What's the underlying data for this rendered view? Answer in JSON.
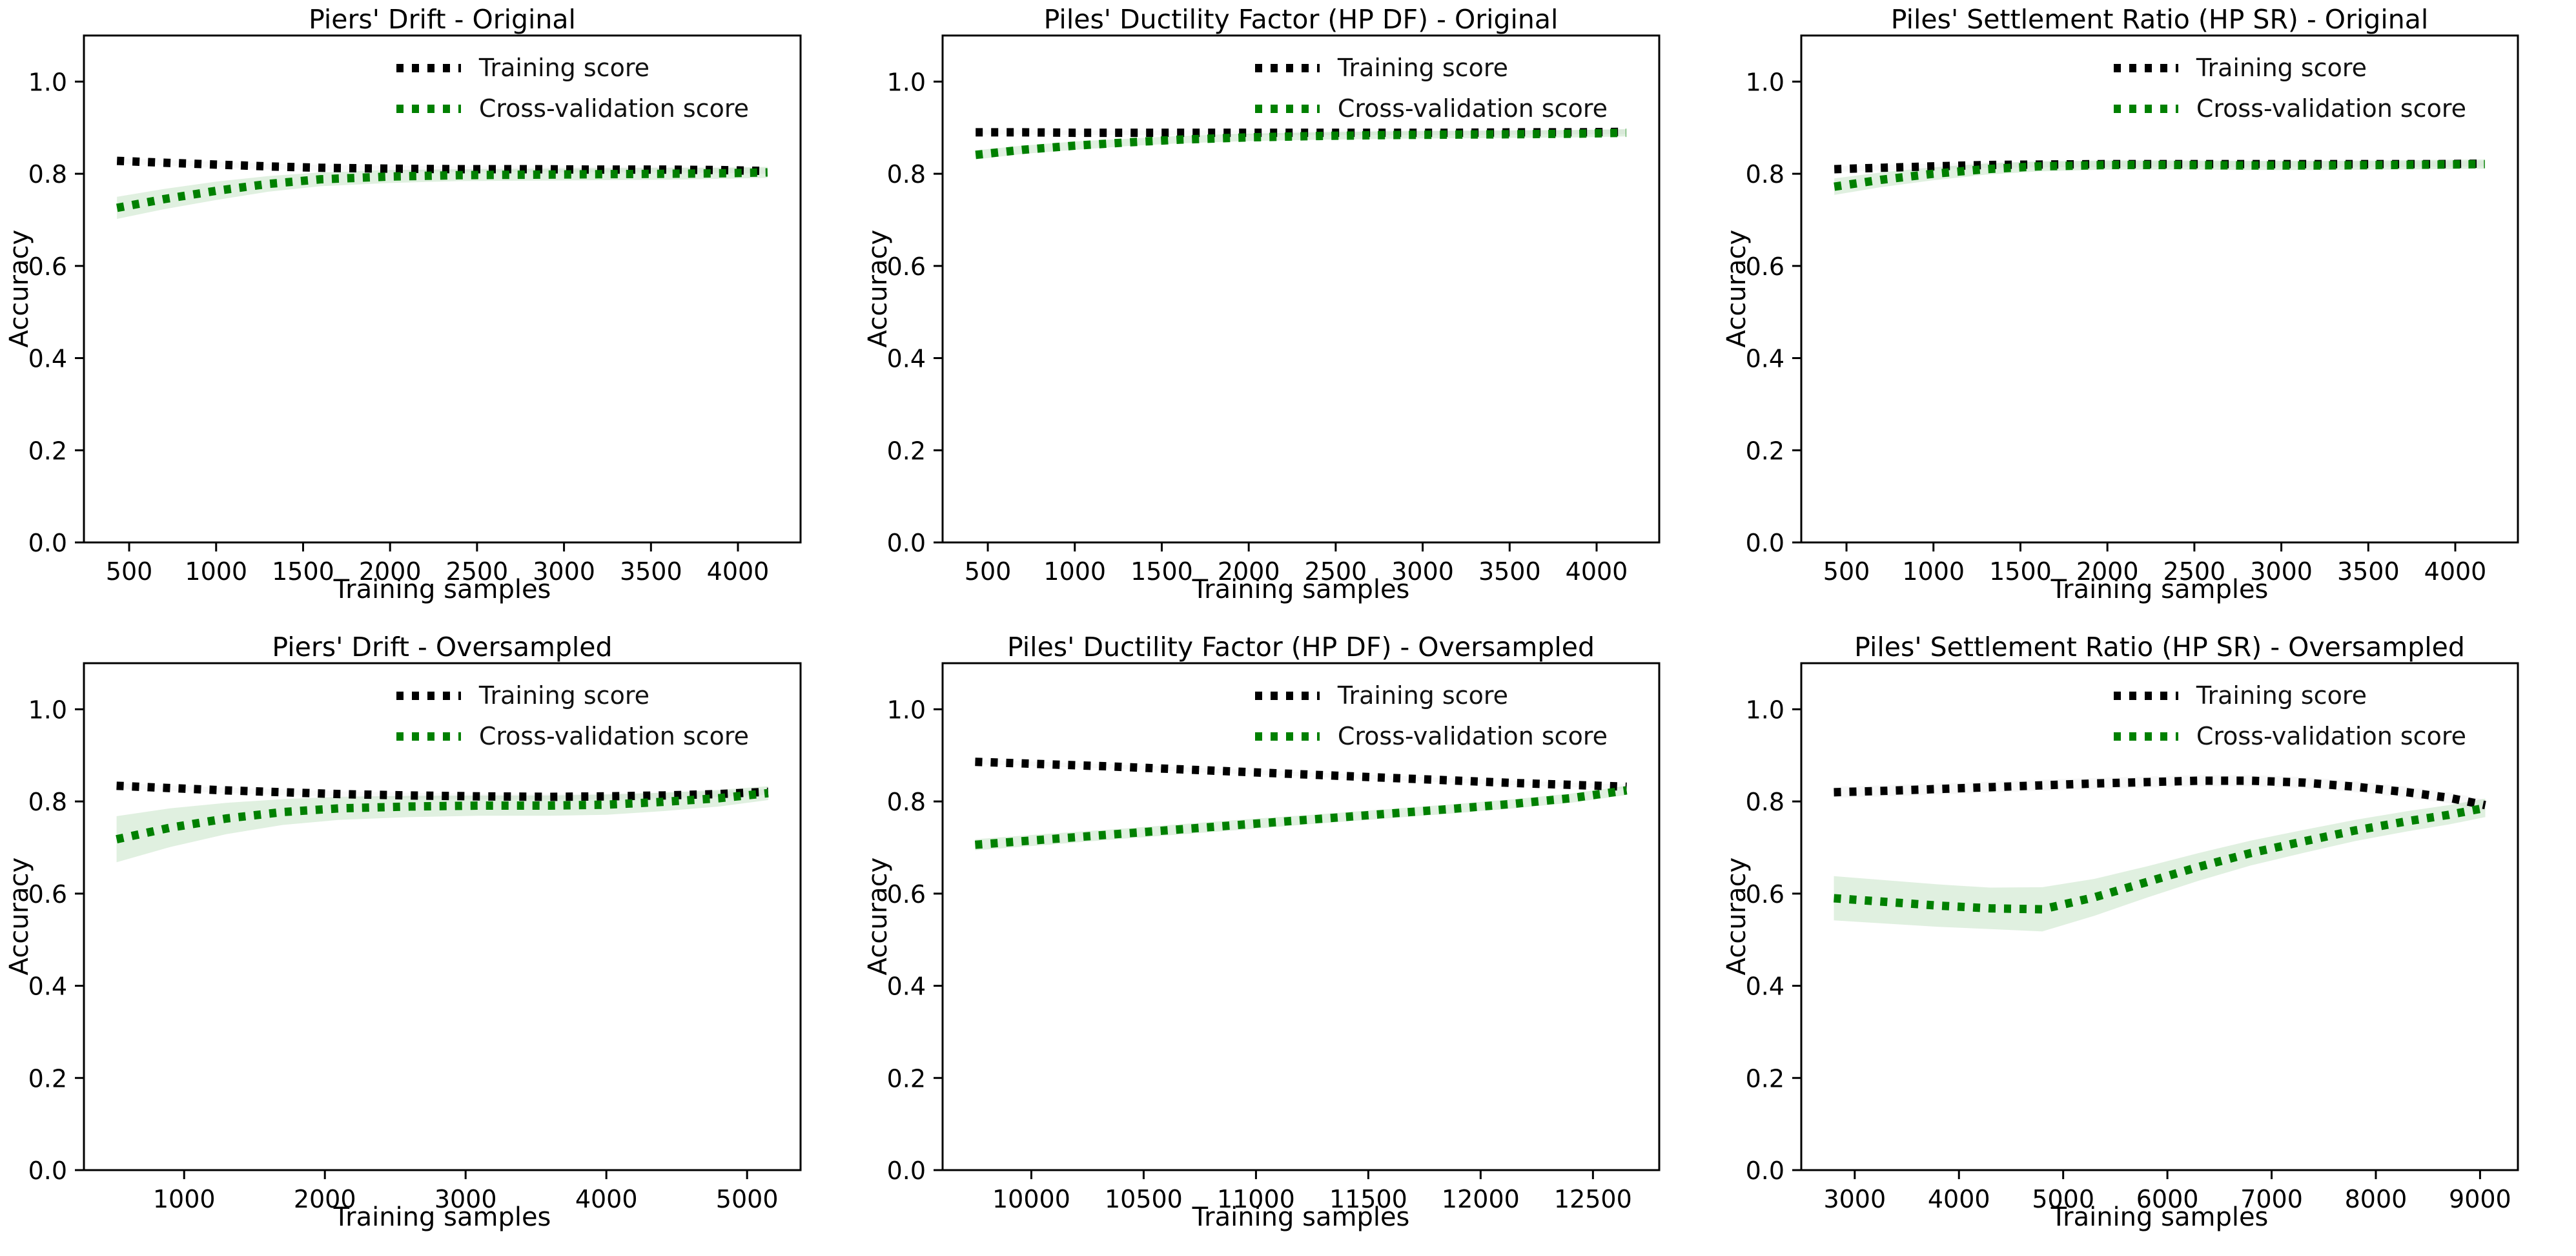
{
  "page": {
    "background": "#ffffff"
  },
  "colors": {
    "train": "#000000",
    "cv": "#008000",
    "cv_band": "#008000",
    "train_band": "#999999"
  },
  "chart_data": [
    {
      "type": "line",
      "title": "Piers' Drift - Original",
      "xlabel": "Training samples",
      "ylabel": "Accuracy",
      "legend": [
        "Training score",
        "Cross-validation score"
      ],
      "legend_position": "upper right",
      "grid": false,
      "xlim": [
        240,
        4360
      ],
      "ylim": [
        0,
        1.1
      ],
      "xticks": [
        500,
        1000,
        1500,
        2000,
        2500,
        3000,
        3500,
        4000
      ],
      "yticks": [
        0,
        0.2,
        0.4,
        0.6,
        0.8,
        1.0
      ],
      "ytick_labels": [
        "0.0",
        "0.2",
        "0.4",
        "0.6",
        "0.8",
        "1.0"
      ],
      "series": [
        {
          "name": "Training score",
          "color": "#000000",
          "band_color": "#999999",
          "band_opacity": 0.07,
          "x": [
            430,
            700,
            1000,
            1300,
            1600,
            2000,
            2400,
            2800,
            3200,
            3600,
            3900,
            4170
          ],
          "y": [
            0.828,
            0.824,
            0.82,
            0.816,
            0.813,
            0.811,
            0.81,
            0.81,
            0.809,
            0.809,
            0.808,
            0.806
          ],
          "band": [
            0.006,
            0.006,
            0.006,
            0.006,
            0.006,
            0.006,
            0.006,
            0.006,
            0.006,
            0.006,
            0.006,
            0.006
          ]
        },
        {
          "name": "Cross-validation score",
          "color": "#008000",
          "band_color": "#008000",
          "band_opacity": 0.12,
          "x": [
            430,
            700,
            1000,
            1300,
            1600,
            2000,
            2400,
            2800,
            3200,
            3600,
            3900,
            4170
          ],
          "y": [
            0.726,
            0.745,
            0.763,
            0.778,
            0.788,
            0.794,
            0.797,
            0.798,
            0.799,
            0.8,
            0.801,
            0.803
          ],
          "band": [
            0.024,
            0.022,
            0.02,
            0.017,
            0.015,
            0.014,
            0.013,
            0.013,
            0.013,
            0.013,
            0.012,
            0.012
          ]
        }
      ]
    },
    {
      "type": "line",
      "title": "Piles' Ductility Factor (HP DF) - Original",
      "xlabel": "Training samples",
      "ylabel": "Accuracy",
      "legend": [
        "Training score",
        "Cross-validation score"
      ],
      "legend_position": "upper right",
      "grid": false,
      "xlim": [
        240,
        4360
      ],
      "ylim": [
        0,
        1.1
      ],
      "xticks": [
        500,
        1000,
        1500,
        2000,
        2500,
        3000,
        3500,
        4000
      ],
      "yticks": [
        0,
        0.2,
        0.4,
        0.6,
        0.8,
        1.0
      ],
      "ytick_labels": [
        "0.0",
        "0.2",
        "0.4",
        "0.6",
        "0.8",
        "1.0"
      ],
      "series": [
        {
          "name": "Training score",
          "color": "#000000",
          "band_color": "#999999",
          "band_opacity": 0.07,
          "x": [
            430,
            700,
            1000,
            1300,
            1600,
            2000,
            2400,
            2800,
            3200,
            3600,
            3900,
            4170
          ],
          "y": [
            0.89,
            0.89,
            0.889,
            0.889,
            0.889,
            0.889,
            0.889,
            0.889,
            0.889,
            0.89,
            0.89,
            0.891
          ],
          "band": [
            0.005,
            0.005,
            0.005,
            0.005,
            0.005,
            0.005,
            0.005,
            0.005,
            0.005,
            0.005,
            0.005,
            0.005
          ]
        },
        {
          "name": "Cross-validation score",
          "color": "#008000",
          "band_color": "#008000",
          "band_opacity": 0.12,
          "x": [
            430,
            700,
            1000,
            1300,
            1600,
            2000,
            2400,
            2800,
            3200,
            3600,
            3900,
            4170
          ],
          "y": [
            0.841,
            0.852,
            0.861,
            0.868,
            0.874,
            0.879,
            0.882,
            0.884,
            0.885,
            0.886,
            0.887,
            0.889
          ],
          "band": [
            0.01,
            0.009,
            0.009,
            0.008,
            0.008,
            0.008,
            0.008,
            0.008,
            0.008,
            0.008,
            0.008,
            0.008
          ]
        }
      ]
    },
    {
      "type": "line",
      "title": "Piles' Settlement Ratio (HP SR) - Original",
      "xlabel": "Training samples",
      "ylabel": "Accuracy",
      "legend": [
        "Training score",
        "Cross-validation score"
      ],
      "legend_position": "upper right",
      "grid": false,
      "xlim": [
        240,
        4360
      ],
      "ylim": [
        0,
        1.1
      ],
      "xticks": [
        500,
        1000,
        1500,
        2000,
        2500,
        3000,
        3500,
        4000
      ],
      "yticks": [
        0,
        0.2,
        0.4,
        0.6,
        0.8,
        1.0
      ],
      "ytick_labels": [
        "0.0",
        "0.2",
        "0.4",
        "0.6",
        "0.8",
        "1.0"
      ],
      "series": [
        {
          "name": "Training score",
          "color": "#000000",
          "band_color": "#999999",
          "band_opacity": 0.07,
          "x": [
            430,
            700,
            1000,
            1300,
            1600,
            2000,
            2400,
            2800,
            3200,
            3600,
            3900,
            4170
          ],
          "y": [
            0.81,
            0.813,
            0.816,
            0.819,
            0.82,
            0.821,
            0.821,
            0.821,
            0.821,
            0.821,
            0.821,
            0.822
          ],
          "band": [
            0.006,
            0.006,
            0.006,
            0.006,
            0.006,
            0.006,
            0.006,
            0.006,
            0.006,
            0.006,
            0.006,
            0.006
          ]
        },
        {
          "name": "Cross-validation score",
          "color": "#008000",
          "band_color": "#008000",
          "band_opacity": 0.12,
          "x": [
            430,
            700,
            1000,
            1300,
            1600,
            2000,
            2400,
            2800,
            3200,
            3600,
            3900,
            4170
          ],
          "y": [
            0.772,
            0.787,
            0.8,
            0.81,
            0.816,
            0.819,
            0.819,
            0.818,
            0.818,
            0.819,
            0.82,
            0.821
          ],
          "band": [
            0.018,
            0.016,
            0.014,
            0.012,
            0.011,
            0.01,
            0.01,
            0.01,
            0.01,
            0.01,
            0.01,
            0.01
          ]
        }
      ]
    },
    {
      "type": "line",
      "title": "Piers' Drift - Oversampled",
      "xlabel": "Training samples",
      "ylabel": "Accuracy",
      "legend": [
        "Training score",
        "Cross-validation score"
      ],
      "legend_position": "upper right",
      "grid": false,
      "xlim": [
        288,
        5380
      ],
      "ylim": [
        0,
        1.1
      ],
      "xticks": [
        1000,
        2000,
        3000,
        4000,
        5000
      ],
      "yticks": [
        0,
        0.2,
        0.4,
        0.6,
        0.8,
        1.0
      ],
      "ytick_labels": [
        "0.0",
        "0.2",
        "0.4",
        "0.6",
        "0.8",
        "1.0"
      ],
      "series": [
        {
          "name": "Training score",
          "color": "#000000",
          "band_color": "#999999",
          "band_opacity": 0.07,
          "x": [
            520,
            900,
            1300,
            1700,
            2100,
            2600,
            3100,
            3600,
            4000,
            4400,
            4800,
            5150
          ],
          "y": [
            0.834,
            0.829,
            0.824,
            0.82,
            0.816,
            0.813,
            0.811,
            0.81,
            0.811,
            0.813,
            0.816,
            0.821
          ],
          "band": [
            0.006,
            0.006,
            0.006,
            0.006,
            0.006,
            0.006,
            0.006,
            0.006,
            0.006,
            0.006,
            0.006,
            0.006
          ]
        },
        {
          "name": "Cross-validation score",
          "color": "#008000",
          "band_color": "#008000",
          "band_opacity": 0.12,
          "x": [
            520,
            900,
            1300,
            1700,
            2100,
            2600,
            3100,
            3600,
            4000,
            4400,
            4800,
            5150
          ],
          "y": [
            0.718,
            0.743,
            0.763,
            0.777,
            0.785,
            0.789,
            0.791,
            0.791,
            0.793,
            0.799,
            0.807,
            0.818
          ],
          "band": [
            0.05,
            0.042,
            0.034,
            0.028,
            0.025,
            0.023,
            0.022,
            0.022,
            0.022,
            0.02,
            0.018,
            0.015
          ]
        }
      ]
    },
    {
      "type": "line",
      "title": "Piles' Ductility Factor (HP DF) - Oversampled",
      "xlabel": "Training samples",
      "ylabel": "Accuracy",
      "legend": [
        "Training score",
        "Cross-validation score"
      ],
      "legend_position": "upper right",
      "grid": false,
      "xlim": [
        9605,
        12795
      ],
      "ylim": [
        0,
        1.1
      ],
      "xticks": [
        10000,
        10500,
        11000,
        11500,
        12000,
        12500
      ],
      "yticks": [
        0,
        0.2,
        0.4,
        0.6,
        0.8,
        1.0
      ],
      "ytick_labels": [
        "0.0",
        "0.2",
        "0.4",
        "0.6",
        "0.8",
        "1.0"
      ],
      "series": [
        {
          "name": "Training score",
          "color": "#000000",
          "band_color": "#999999",
          "band_opacity": 0.07,
          "x": [
            9750,
            10050,
            10350,
            10650,
            10950,
            11250,
            11550,
            11850,
            12150,
            12400,
            12650
          ],
          "y": [
            0.886,
            0.881,
            0.876,
            0.87,
            0.864,
            0.858,
            0.852,
            0.846,
            0.84,
            0.836,
            0.832
          ],
          "band": [
            0.005,
            0.005,
            0.005,
            0.005,
            0.005,
            0.005,
            0.005,
            0.005,
            0.005,
            0.005,
            0.005
          ]
        },
        {
          "name": "Cross-validation score",
          "color": "#008000",
          "band_color": "#008000",
          "band_opacity": 0.12,
          "x": [
            9750,
            10050,
            10350,
            10650,
            10950,
            11250,
            11550,
            11850,
            12150,
            12400,
            12650
          ],
          "y": [
            0.706,
            0.717,
            0.728,
            0.739,
            0.75,
            0.761,
            0.772,
            0.783,
            0.795,
            0.807,
            0.824
          ],
          "band": [
            0.012,
            0.012,
            0.011,
            0.011,
            0.011,
            0.01,
            0.01,
            0.01,
            0.01,
            0.01,
            0.01
          ]
        }
      ]
    },
    {
      "type": "line",
      "title": "Piles' Settlement Ratio (HP SR) - Oversampled",
      "xlabel": "Training samples",
      "ylabel": "Accuracy",
      "legend": [
        "Training score",
        "Cross-validation score"
      ],
      "legend_position": "upper right",
      "grid": false,
      "xlim": [
        2487,
        9363
      ],
      "ylim": [
        0,
        1.1
      ],
      "xticks": [
        3000,
        4000,
        5000,
        6000,
        7000,
        8000,
        9000
      ],
      "yticks": [
        0,
        0.2,
        0.4,
        0.6,
        0.8,
        1.0
      ],
      "ytick_labels": [
        "0.0",
        "0.2",
        "0.4",
        "0.6",
        "0.8",
        "1.0"
      ],
      "series": [
        {
          "name": "Training score",
          "color": "#000000",
          "band_color": "#999999",
          "band_opacity": 0.08,
          "x": [
            2800,
            3300,
            3800,
            4300,
            4800,
            5300,
            5800,
            6300,
            6800,
            7300,
            7800,
            8300,
            8700,
            9050
          ],
          "y": [
            0.82,
            0.823,
            0.827,
            0.831,
            0.835,
            0.839,
            0.842,
            0.845,
            0.845,
            0.841,
            0.832,
            0.82,
            0.808,
            0.792
          ],
          "band": [
            0.012,
            0.012,
            0.012,
            0.012,
            0.012,
            0.012,
            0.012,
            0.012,
            0.012,
            0.012,
            0.012,
            0.012,
            0.012,
            0.012
          ]
        },
        {
          "name": "Cross-validation score",
          "color": "#008000",
          "band_color": "#008000",
          "band_opacity": 0.12,
          "x": [
            2800,
            3300,
            3800,
            4300,
            4800,
            5300,
            5800,
            6300,
            6800,
            7300,
            7800,
            8300,
            8700,
            9050
          ],
          "y": [
            0.59,
            0.582,
            0.574,
            0.568,
            0.566,
            0.592,
            0.625,
            0.658,
            0.688,
            0.713,
            0.737,
            0.757,
            0.771,
            0.786
          ],
          "band": [
            0.048,
            0.047,
            0.046,
            0.045,
            0.048,
            0.04,
            0.034,
            0.03,
            0.027,
            0.025,
            0.023,
            0.022,
            0.021,
            0.02
          ]
        }
      ]
    }
  ]
}
